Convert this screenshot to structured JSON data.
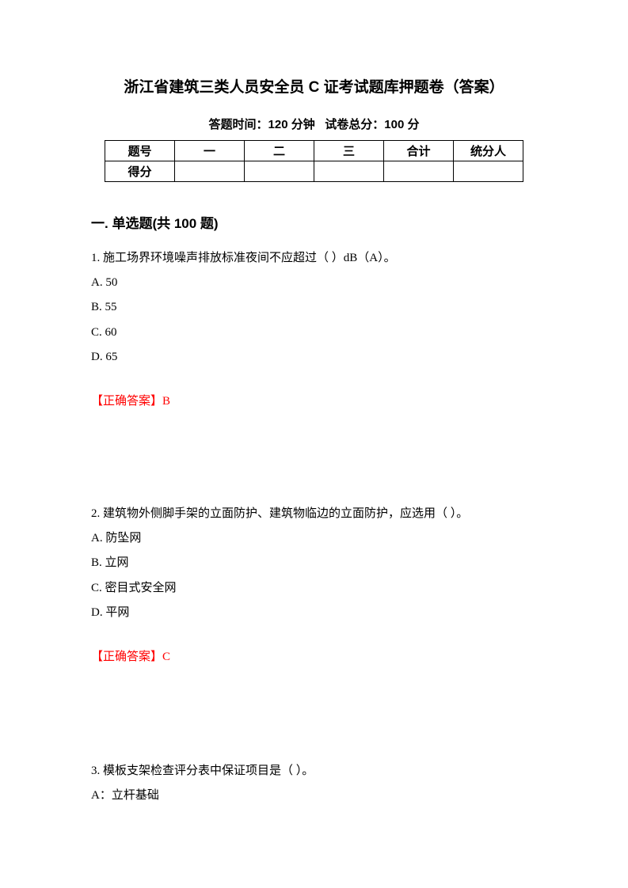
{
  "title": "浙江省建筑三类人员安全员 C 证考试题库押题卷（答案）",
  "subtitle_time_label": "答题时间：",
  "subtitle_time_value": "120 分钟",
  "subtitle_score_label": "试卷总分：",
  "subtitle_score_value": "100 分",
  "table": {
    "header_label": "题号",
    "header_cols": [
      "一",
      "二",
      "三",
      "合计",
      "统分人"
    ],
    "score_label": "得分"
  },
  "section_title": "一. 单选题(共 100 题)",
  "questions": [
    {
      "stem": "1. 施工场界环境噪声排放标准夜间不应超过（ ）dB（A）。",
      "options": [
        "A. 50",
        "B. 55",
        "C. 60",
        "D. 65"
      ],
      "answer_label": "【正确答案】",
      "answer_value": "B"
    },
    {
      "stem": "2. 建筑物外侧脚手架的立面防护、建筑物临边的立面防护，应选用（ ）。",
      "options": [
        "A. 防坠网",
        "B. 立网",
        "C. 密目式安全网",
        "D. 平网"
      ],
      "answer_label": "【正确答案】",
      "answer_value": "C"
    },
    {
      "stem": "3. 模板支架检查评分表中保证项目是（ ）。",
      "options": [
        "A：立杆基础"
      ],
      "answer_label": "",
      "answer_value": ""
    }
  ],
  "colors": {
    "text": "#000000",
    "answer": "#ff0000",
    "background": "#ffffff",
    "border": "#000000"
  }
}
